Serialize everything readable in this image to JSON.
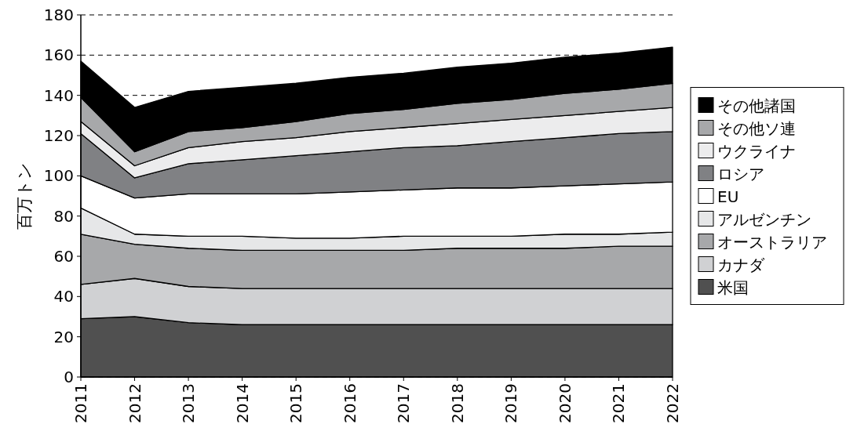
{
  "chart_data": {
    "type": "area",
    "stacked": true,
    "ylabel": "百万トン",
    "x": [
      "2011",
      "2012",
      "2013",
      "2014",
      "2015",
      "2016",
      "2017",
      "2018",
      "2019",
      "2020",
      "2021",
      "2022"
    ],
    "xlim": [
      "2011",
      "2022"
    ],
    "xticks": [
      {
        "value": "2011",
        "label": "2011"
      },
      {
        "value": "2012",
        "label": "2012"
      },
      {
        "value": "2013",
        "label": "2013"
      },
      {
        "value": "2014",
        "label": "2014"
      },
      {
        "value": "2015",
        "label": "2015"
      },
      {
        "value": "2016",
        "label": "2016"
      },
      {
        "value": "2017",
        "label": "2017"
      },
      {
        "value": "2018",
        "label": "2018"
      },
      {
        "value": "2019",
        "label": "2019"
      },
      {
        "value": "2020",
        "label": "2020"
      },
      {
        "value": "2021",
        "label": "2021"
      },
      {
        "value": "2022",
        "label": "2022"
      }
    ],
    "ylim": [
      0,
      180
    ],
    "yticks": [
      0,
      20,
      40,
      60,
      80,
      100,
      120,
      140,
      160,
      180
    ],
    "grid": "y",
    "legend": "right",
    "series": [
      {
        "name": "米国",
        "color": "#505050",
        "values": [
          29,
          30,
          27,
          26,
          26,
          26,
          26,
          26,
          26,
          26,
          26,
          26
        ]
      },
      {
        "name": "カナダ",
        "color": "#d0d1d3",
        "values": [
          17,
          19,
          18,
          18,
          18,
          18,
          18,
          18,
          18,
          18,
          18,
          18
        ]
      },
      {
        "name": "オーストラリア",
        "color": "#a7a8aa",
        "values": [
          25,
          17,
          19,
          19,
          19,
          19,
          19,
          20,
          20,
          20,
          21,
          21
        ]
      },
      {
        "name": "アルゼンチン",
        "color": "#e6e7e8",
        "values": [
          13,
          5,
          6,
          7,
          6,
          6,
          7,
          6,
          6,
          7,
          6,
          7
        ]
      },
      {
        "name": "EU",
        "color": "#ffffff",
        "values": [
          16,
          18,
          21,
          21,
          22,
          23,
          23,
          24,
          24,
          24,
          25,
          25
        ]
      },
      {
        "name": "ロシア",
        "color": "#808184",
        "values": [
          21,
          10,
          15,
          17,
          19,
          20,
          21,
          21,
          23,
          24,
          25,
          25
        ]
      },
      {
        "name": "ウクライナ",
        "color": "#ececed",
        "values": [
          6,
          6,
          8,
          9,
          9,
          10,
          10,
          11,
          11,
          11,
          11,
          12
        ]
      },
      {
        "name": "その他ソ連",
        "color": "#a7a8aa",
        "values": [
          12,
          7,
          8,
          7,
          8,
          9,
          9,
          10,
          10,
          11,
          11,
          12
        ]
      },
      {
        "name": "その他諸国",
        "color": "#000000",
        "values": [
          18,
          22,
          20,
          20,
          19,
          18,
          18,
          18,
          18,
          18,
          18,
          18
        ]
      }
    ]
  }
}
